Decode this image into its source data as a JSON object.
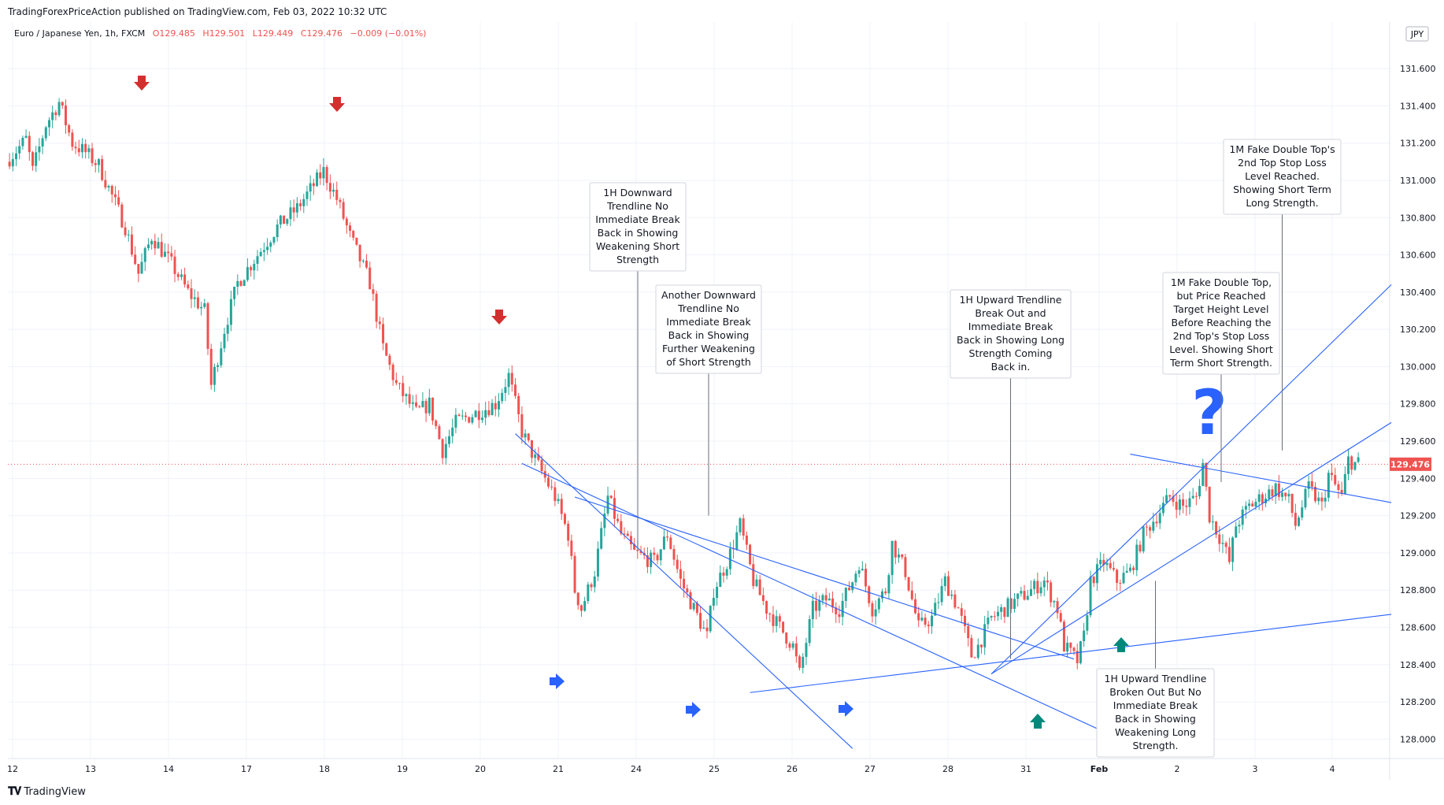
{
  "header": {
    "published": "TradingForexPriceAction published on TradingView.com, Feb 03, 2022 10:32 UTC"
  },
  "footer": {
    "brand": "TradingView",
    "logo_icon": "tradingview-logo-icon"
  },
  "colors": {
    "up": "#26a69a",
    "down": "#ef5350",
    "line": "#2962ff",
    "grid": "#f0f3fa",
    "price_tag": "#ef5350",
    "arrow_down": "#d32f2f",
    "arrow_right": "#2962ff",
    "arrow_up": "#00897b"
  },
  "chart_data": {
    "type": "candlestick",
    "symbol_line": {
      "symbol": "Euro / Japanese Yen, 1h, FXCM",
      "open": "O129.485",
      "high": "H129.501",
      "low": "L129.449",
      "close": "C129.476",
      "change": "−0.009 (−0.01%)"
    },
    "currency_badge": "JPY",
    "last_price": "129.476",
    "ylim": [
      127.9,
      131.85
    ],
    "y_ticks": [
      "128.000",
      "128.200",
      "128.400",
      "128.600",
      "128.800",
      "129.000",
      "129.200",
      "129.400",
      "129.600",
      "129.800",
      "130.000",
      "130.200",
      "130.400",
      "130.600",
      "130.800",
      "131.000",
      "131.200",
      "131.400",
      "131.600"
    ],
    "x_ticks": [
      "12",
      "13",
      "14",
      "17",
      "18",
      "19",
      "20",
      "21",
      "24",
      "25",
      "26",
      "27",
      "28",
      "31",
      "Feb",
      "2",
      "3",
      "4"
    ],
    "price_path": [
      [
        0,
        131.1
      ],
      [
        6,
        131.22
      ],
      [
        8,
        131.05
      ],
      [
        12,
        131.3
      ],
      [
        16,
        131.42
      ],
      [
        20,
        131.2
      ],
      [
        24,
        131.15
      ],
      [
        28,
        131.08
      ],
      [
        30,
        131.0
      ],
      [
        36,
        130.75
      ],
      [
        40,
        130.5
      ],
      [
        44,
        130.7
      ],
      [
        50,
        130.55
      ],
      [
        55,
        130.4
      ],
      [
        60,
        130.3
      ],
      [
        62,
        129.9
      ],
      [
        66,
        130.2
      ],
      [
        70,
        130.45
      ],
      [
        76,
        130.6
      ],
      [
        82,
        130.75
      ],
      [
        88,
        130.85
      ],
      [
        92,
        130.95
      ],
      [
        96,
        131.05
      ],
      [
        100,
        130.9
      ],
      [
        104,
        130.7
      ],
      [
        110,
        130.45
      ],
      [
        114,
        130.1
      ],
      [
        118,
        129.9
      ],
      [
        124,
        129.75
      ],
      [
        128,
        129.8
      ],
      [
        132,
        129.55
      ],
      [
        136,
        129.7
      ],
      [
        142,
        129.75
      ],
      [
        148,
        129.8
      ],
      [
        152,
        129.95
      ],
      [
        156,
        129.65
      ],
      [
        160,
        129.5
      ],
      [
        166,
        129.3
      ],
      [
        170,
        129.1
      ],
      [
        172,
        128.8
      ],
      [
        174,
        128.7
      ],
      [
        178,
        128.9
      ],
      [
        182,
        129.3
      ],
      [
        186,
        129.1
      ],
      [
        190,
        129.0
      ],
      [
        196,
        128.95
      ],
      [
        200,
        129.1
      ],
      [
        204,
        128.85
      ],
      [
        208,
        128.7
      ],
      [
        212,
        128.55
      ],
      [
        214,
        128.8
      ],
      [
        218,
        128.95
      ],
      [
        222,
        129.15
      ],
      [
        226,
        128.85
      ],
      [
        230,
        128.7
      ],
      [
        234,
        128.6
      ],
      [
        238,
        128.5
      ],
      [
        240,
        128.35
      ],
      [
        244,
        128.7
      ],
      [
        248,
        128.75
      ],
      [
        252,
        128.7
      ],
      [
        256,
        128.85
      ],
      [
        258,
        128.95
      ],
      [
        262,
        128.7
      ],
      [
        266,
        128.8
      ],
      [
        268,
        129.05
      ],
      [
        272,
        128.9
      ],
      [
        276,
        128.6
      ],
      [
        280,
        128.65
      ],
      [
        284,
        128.85
      ],
      [
        288,
        128.7
      ],
      [
        292,
        128.45
      ],
      [
        294,
        128.5
      ],
      [
        298,
        128.65
      ],
      [
        302,
        128.7
      ],
      [
        306,
        128.75
      ],
      [
        310,
        128.8
      ],
      [
        314,
        128.85
      ],
      [
        318,
        128.7
      ],
      [
        320,
        128.5
      ],
      [
        324,
        128.42
      ],
      [
        326,
        128.55
      ],
      [
        328,
        128.85
      ],
      [
        332,
        128.95
      ],
      [
        336,
        128.85
      ],
      [
        340,
        128.9
      ],
      [
        344,
        129.1
      ],
      [
        348,
        129.2
      ],
      [
        352,
        129.3
      ],
      [
        356,
        129.25
      ],
      [
        360,
        129.3
      ],
      [
        362,
        129.48
      ],
      [
        364,
        129.2
      ],
      [
        368,
        129.05
      ],
      [
        370,
        128.95
      ],
      [
        372,
        129.15
      ],
      [
        376,
        129.25
      ],
      [
        380,
        129.3
      ],
      [
        384,
        129.35
      ],
      [
        388,
        129.28
      ],
      [
        390,
        129.15
      ],
      [
        394,
        129.35
      ],
      [
        398,
        129.25
      ],
      [
        400,
        129.42
      ],
      [
        404,
        129.3
      ],
      [
        406,
        129.5
      ],
      [
        408,
        129.48
      ]
    ],
    "down_arrows": [
      18,
      60,
      130
    ],
    "right_arrows": [
      171,
      208,
      248
    ],
    "up_arrows": [
      320,
      342
    ],
    "annotations": [
      {
        "text": [
          "1H Downward",
          "Trendline No",
          "Immediate Break",
          "Back in Showing",
          "Weakening Short",
          "Strength"
        ],
        "anchor_x": 204,
        "anchor_y": 129.03
      },
      {
        "text": [
          "Another Downward",
          "Trendline No",
          "Immediate Break",
          "Back in Showing",
          "Further Weakening",
          "of Short Strength"
        ],
        "anchor_x": 223,
        "anchor_y": 129.2
      },
      {
        "text": [
          "1H Upward Trendline",
          "Break Out and",
          "Immediate Break",
          "Back in Showing Long",
          "Strength Coming",
          "Back in."
        ],
        "anchor_x": 322,
        "anchor_y": 128.43
      },
      {
        "text": [
          "1H Upward Trendline",
          "Broken Out But No",
          "Immediate Break",
          "Back in Showing",
          "Weakening Long",
          "Strength."
        ],
        "anchor_x": 367,
        "anchor_y": 128.85
      },
      {
        "text": [
          "1M Fake Double Top,",
          "but Price Reached",
          "Target Height Level",
          "Before Reaching the",
          "2nd Top's Stop Loss",
          "Level. Showing Short",
          "Term Short Strength."
        ],
        "anchor_x": 390,
        "anchor_y": 129.38
      },
      {
        "text": [
          "1M Fake Double Top's",
          "2nd Top Stop Loss",
          "Level Reached.",
          "Showing Short Term",
          "Long Strength."
        ],
        "anchor_x": 406,
        "anchor_y": 129.55
      }
    ],
    "question_mark": "?"
  }
}
